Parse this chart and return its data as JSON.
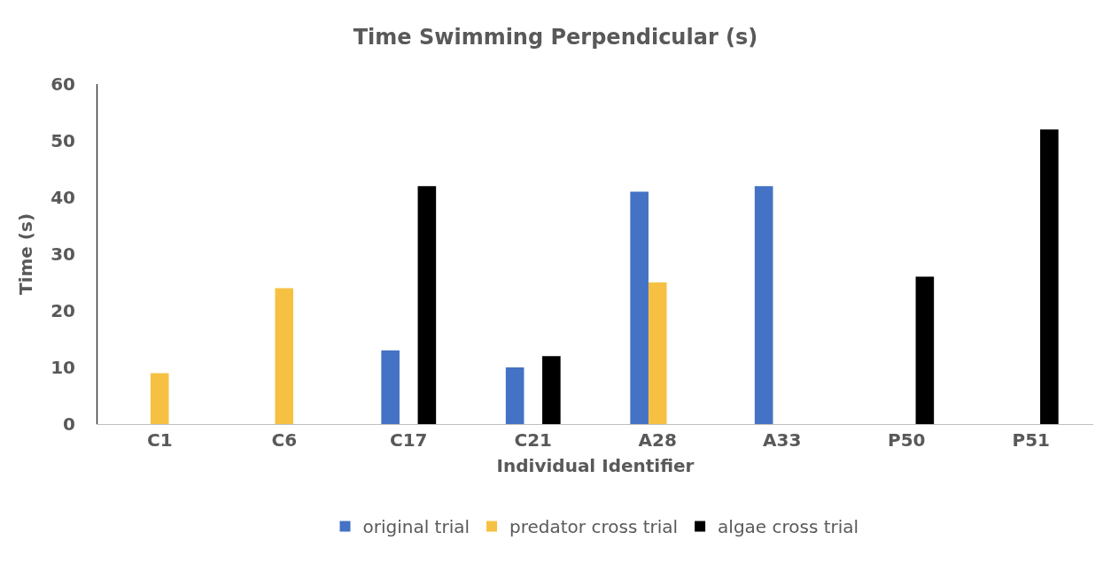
{
  "chart_data": {
    "type": "bar",
    "title": "Time Swimming Perpendicular (s)",
    "xlabel": "Individual Identifier",
    "ylabel": "Time (s)",
    "categories": [
      "C1",
      "C6",
      "C17",
      "C21",
      "A28",
      "A33",
      "P50",
      "P51"
    ],
    "series": [
      {
        "name": "original trial",
        "color": "#4472c4",
        "values": [
          null,
          null,
          13,
          10,
          41,
          42,
          null,
          null
        ]
      },
      {
        "name": "predator cross trial",
        "color": "#f6c143",
        "values": [
          9,
          24,
          null,
          null,
          25,
          null,
          null,
          null
        ]
      },
      {
        "name": "algae cross trial",
        "color": "#000000",
        "values": [
          null,
          null,
          42,
          12,
          null,
          null,
          26,
          52
        ]
      }
    ],
    "ylim": [
      0,
      60
    ],
    "yticks": [
      0,
      10,
      20,
      30,
      40,
      50,
      60
    ],
    "grid": false,
    "legend": "bottom"
  }
}
